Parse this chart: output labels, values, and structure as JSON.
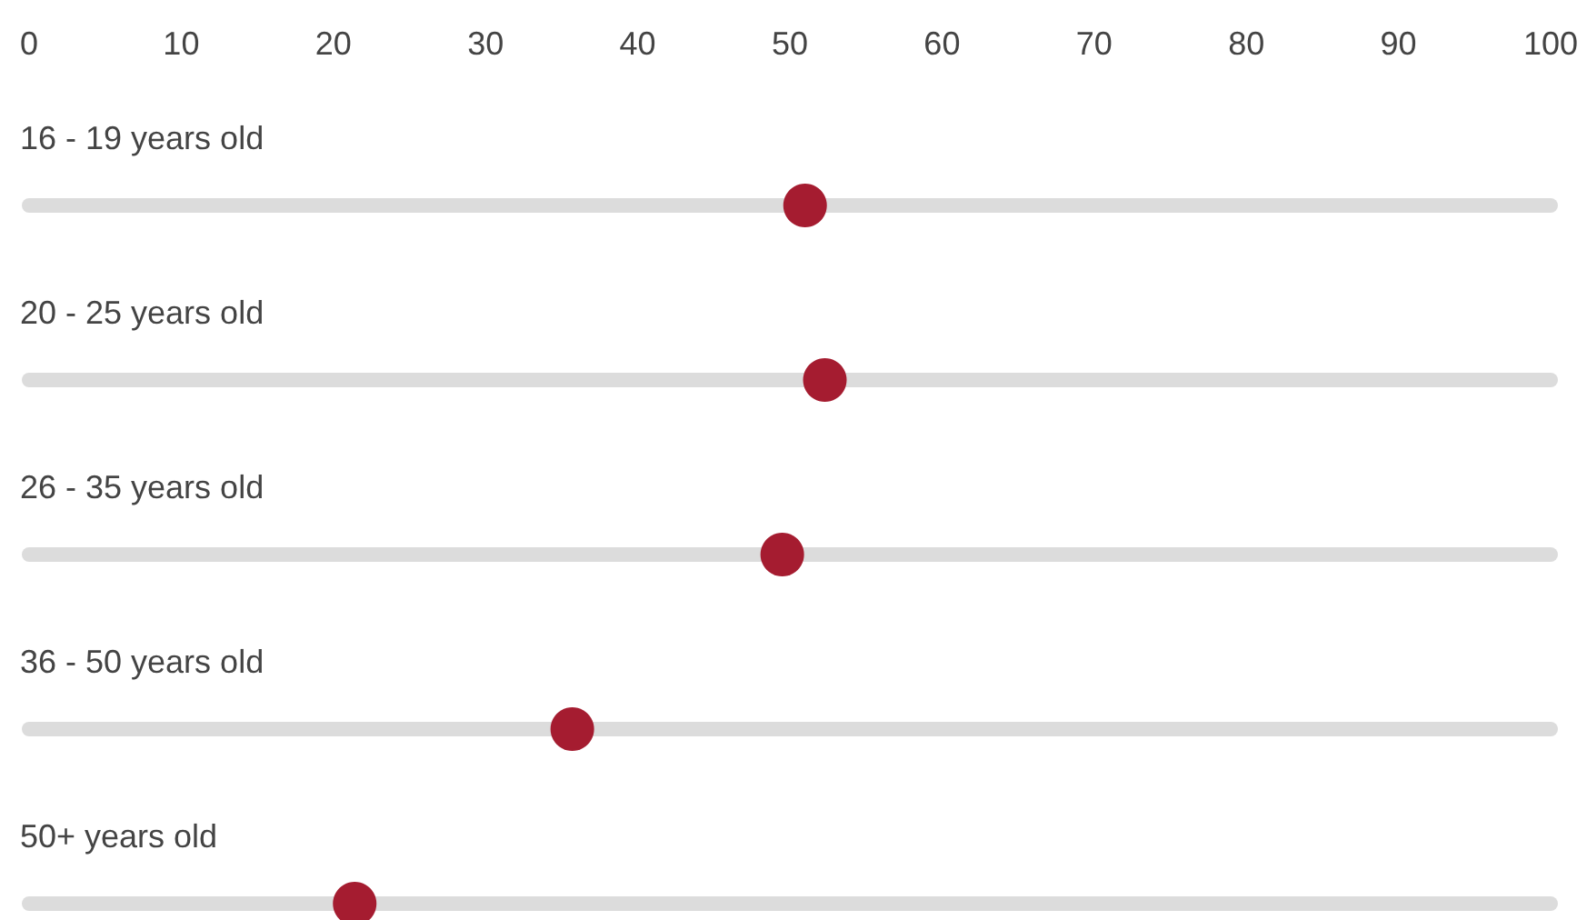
{
  "chart_data": {
    "type": "scatter",
    "orientation": "horizontal",
    "categories": [
      "16 - 19 years old",
      "20 - 25 years old",
      "26 - 35 years old",
      "36 - 50 years old",
      "50+ years old"
    ],
    "values": [
      51,
      52.3,
      49.5,
      35.7,
      21.4
    ],
    "color": "#a51c30",
    "marker": "circle",
    "grid": "y",
    "xlim": [
      0,
      100
    ],
    "xticks": [
      0,
      10,
      20,
      30,
      40,
      50,
      60,
      70,
      80,
      90,
      100
    ]
  }
}
